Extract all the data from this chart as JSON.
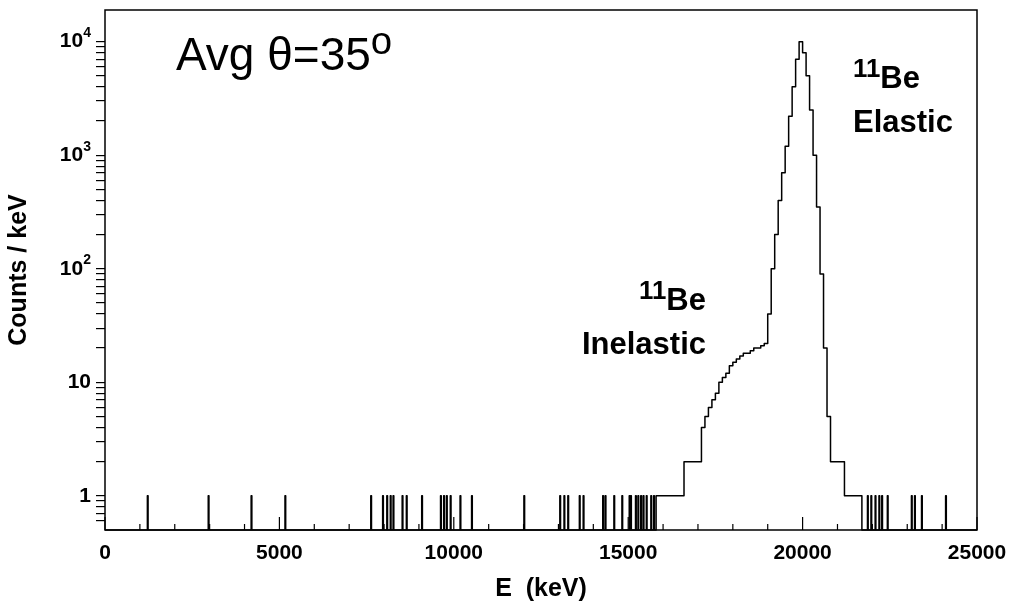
{
  "chart_data": {
    "type": "histogram",
    "xlabel": "E  (keV)",
    "ylabel": "Counts / keV",
    "log": "y",
    "color": "#000000",
    "annotations": [
      "Avg θ=35$^{o}$",
      "$^{11}$Be\nElastic",
      "$^{11}$Be\nInelastic"
    ],
    "xlim": [
      0,
      25000
    ],
    "ylim": [
      0.5,
      19000
    ],
    "xticks": [
      0,
      {
        "value": 1000,
        "label": null
      },
      {
        "value": 2000,
        "label": null
      },
      {
        "value": 3000,
        "label": null
      },
      {
        "value": 4000,
        "label": null
      },
      5000,
      {
        "value": 6000,
        "label": null
      },
      {
        "value": 7000,
        "label": null
      },
      {
        "value": 8000,
        "label": null
      },
      {
        "value": 9000,
        "label": null
      },
      10000,
      {
        "value": 11000,
        "label": null
      },
      {
        "value": 12000,
        "label": null
      },
      {
        "value": 13000,
        "label": null
      },
      {
        "value": 14000,
        "label": null
      },
      15000,
      {
        "value": 16000,
        "label": null
      },
      {
        "value": 17000,
        "label": null
      },
      {
        "value": 18000,
        "label": null
      },
      {
        "value": 19000,
        "label": null
      },
      20000,
      {
        "value": 21000,
        "label": null
      },
      {
        "value": 22000,
        "label": null
      },
      {
        "value": 23000,
        "label": null
      },
      {
        "value": 24000,
        "label": null
      },
      25000
    ],
    "yticks": [
      {
        "value": 0.6,
        "label": null
      },
      {
        "value": 0.7,
        "label": null
      },
      {
        "value": 0.8,
        "label": null
      },
      {
        "value": 0.9,
        "label": null
      },
      1,
      {
        "value": 2,
        "label": null
      },
      {
        "value": 3,
        "label": null
      },
      {
        "value": 4,
        "label": null
      },
      {
        "value": 5,
        "label": null
      },
      {
        "value": 6,
        "label": null
      },
      {
        "value": 7,
        "label": null
      },
      {
        "value": 8,
        "label": null
      },
      {
        "value": 9,
        "label": null
      },
      10,
      {
        "value": 20,
        "label": null
      },
      {
        "value": 30,
        "label": null
      },
      {
        "value": 40,
        "label": null
      },
      {
        "value": 50,
        "label": null
      },
      {
        "value": 60,
        "label": null
      },
      {
        "value": 70,
        "label": null
      },
      {
        "value": 80,
        "label": null
      },
      {
        "value": 90,
        "label": null
      },
      {
        "value": 100,
        "label": "10$^{2}$"
      },
      {
        "value": 200,
        "label": null
      },
      {
        "value": 300,
        "label": null
      },
      {
        "value": 400,
        "label": null
      },
      {
        "value": 500,
        "label": null
      },
      {
        "value": 600,
        "label": null
      },
      {
        "value": 700,
        "label": null
      },
      {
        "value": 800,
        "label": null
      },
      {
        "value": 900,
        "label": null
      },
      {
        "value": 1000,
        "label": "10$^{3}$"
      },
      {
        "value": 2000,
        "label": null
      },
      {
        "value": 3000,
        "label": null
      },
      {
        "value": 4000,
        "label": null
      },
      {
        "value": 5000,
        "label": null
      },
      {
        "value": 6000,
        "label": null
      },
      {
        "value": 7000,
        "label": null
      },
      {
        "value": 8000,
        "label": null
      },
      {
        "value": 9000,
        "label": null
      },
      {
        "value": 10000,
        "label": "10$^{4}$"
      }
    ],
    "bins": [
      0,
      1215,
      1235,
      2960,
      2980,
      4190,
      4210,
      5160,
      5180,
      7620,
      7640,
      7960,
      7980,
      8080,
      8100,
      8180,
      8200,
      8260,
      8280,
      8520,
      8540,
      8640,
      8660,
      9080,
      9100,
      9620,
      9640,
      9710,
      9730,
      9790,
      9810,
      9900,
      9920,
      10180,
      10200,
      10510,
      10530,
      12010,
      12030,
      13040,
      13060,
      13160,
      13180,
      13270,
      13290,
      13600,
      13620,
      13710,
      13730,
      14270,
      14290,
      14340,
      14360,
      14590,
      14610,
      14820,
      14840,
      15030,
      15050,
      15070,
      15090,
      15210,
      15230,
      15280,
      15300,
      15360,
      15380,
      15430,
      15450,
      15520,
      15540,
      15650,
      15670,
      15730,
      15750,
      15800,
      15900,
      16000,
      16100,
      16200,
      16300,
      16400,
      16500,
      16600,
      16700,
      16800,
      16900,
      17000,
      17100,
      17200,
      17300,
      17400,
      17500,
      17600,
      17700,
      17800,
      17900,
      18000,
      18100,
      18200,
      18300,
      18400,
      18500,
      18600,
      18700,
      18800,
      18900,
      19000,
      19100,
      19200,
      19300,
      19400,
      19500,
      19600,
      19700,
      19800,
      19900,
      20000,
      20100,
      20200,
      20300,
      20400,
      20500,
      20600,
      20700,
      20800,
      20900,
      21000,
      21100,
      21200,
      21300,
      21400,
      21500,
      21600,
      21700,
      21860,
      21880,
      21960,
      21980,
      22080,
      22100,
      22190,
      22210,
      22270,
      22290,
      22430,
      22450,
      23120,
      23140,
      23210,
      23230,
      23410,
      23430,
      24100,
      24120,
      25000
    ],
    "values": [
      null,
      1,
      null,
      1,
      null,
      1,
      null,
      1,
      null,
      1,
      null,
      1,
      null,
      1,
      null,
      1,
      null,
      1,
      null,
      1,
      null,
      1,
      null,
      1,
      null,
      1,
      null,
      1,
      null,
      1,
      null,
      1,
      null,
      1,
      null,
      1,
      null,
      1,
      null,
      1,
      null,
      1,
      null,
      1,
      null,
      1,
      null,
      1,
      null,
      1,
      null,
      1,
      null,
      1,
      null,
      1,
      null,
      1,
      null,
      1,
      null,
      1,
      null,
      1,
      null,
      1,
      null,
      1,
      null,
      1,
      null,
      1,
      null,
      1,
      null,
      1,
      1,
      1,
      1,
      1,
      1,
      1,
      1,
      2,
      2,
      2,
      2,
      2,
      4,
      5,
      6,
      7,
      8,
      10,
      11,
      12,
      14,
      15,
      16,
      17,
      18,
      18,
      19,
      20,
      20,
      21,
      22,
      40,
      100,
      200,
      400,
      700,
      1200,
      2200,
      4000,
      7000,
      10000,
      8000,
      5000,
      2500,
      1000,
      350,
      90,
      20,
      5,
      2,
      2,
      2,
      2,
      1,
      1,
      1,
      1,
      1,
      null,
      1,
      null,
      1,
      null,
      1,
      null,
      1,
      null,
      1,
      null,
      1,
      null,
      1,
      null,
      1,
      null,
      1,
      null,
      1,
      null
    ]
  }
}
